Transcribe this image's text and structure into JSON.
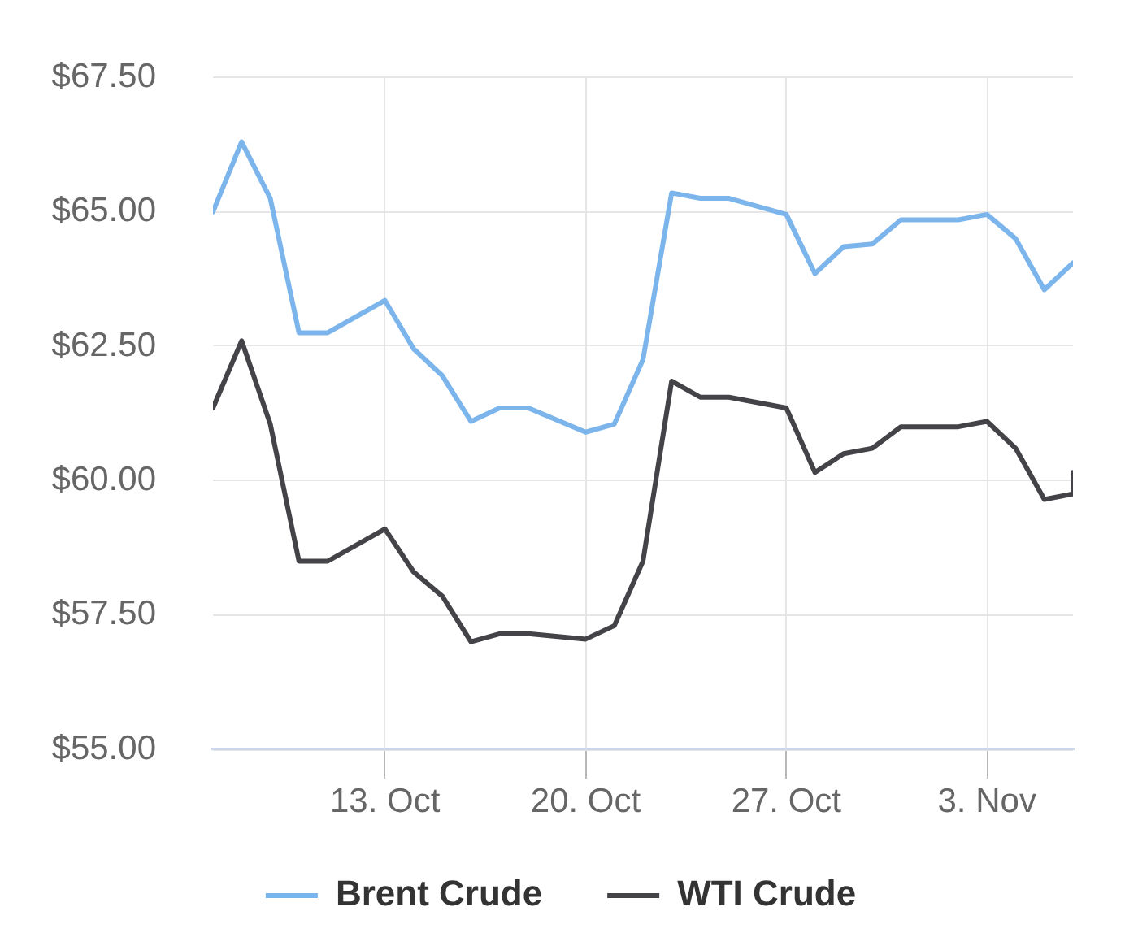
{
  "chart_data": {
    "type": "line",
    "x": [
      "--10-07",
      "--10-08",
      "--10-09",
      "--10-10",
      "--10-11",
      "--10-13",
      "--10-14",
      "--10-15",
      "--10-16",
      "--10-17",
      "--10-18",
      "--10-20",
      "--10-21",
      "--10-22",
      "--10-23",
      "--10-24",
      "--10-25",
      "--10-27",
      "--10-28",
      "--10-29",
      "--10-30",
      "--10-31",
      "--11-02",
      "--11-03",
      "--11-04",
      "--11-05",
      "--11-06"
    ],
    "series": [
      {
        "name": "Brent Crude",
        "color": "#7cb5ec",
        "values": [
          65.0,
          66.3,
          65.25,
          62.75,
          62.75,
          63.35,
          62.45,
          61.95,
          61.1,
          61.35,
          61.35,
          60.9,
          61.05,
          62.25,
          65.35,
          65.25,
          65.25,
          64.95,
          63.85,
          64.35,
          64.4,
          64.85,
          64.85,
          64.95,
          64.5,
          63.55,
          64.05
        ]
      },
      {
        "name": "WTI Crude",
        "color": "#434348",
        "x": [
          "--10-07",
          "--10-08",
          "--10-09",
          "--10-10",
          "--10-11",
          "--10-13",
          "--10-14",
          "--10-15",
          "--10-16",
          "--10-17",
          "--10-18",
          "--10-20",
          "--10-21",
          "--10-22",
          "--10-23",
          "--10-24",
          "--10-25",
          "--10-27",
          "--10-28",
          "--10-29",
          "--10-30",
          "--10-31",
          "--11-02",
          "--11-03",
          "--11-04",
          "--11-05",
          "--11-06",
          "--11-06"
        ],
        "values": [
          61.35,
          62.6,
          61.05,
          58.5,
          58.5,
          59.1,
          58.3,
          57.85,
          57.0,
          57.15,
          57.15,
          57.05,
          57.3,
          58.5,
          61.85,
          61.55,
          61.55,
          61.35,
          60.15,
          60.5,
          60.6,
          61.0,
          61.0,
          61.1,
          60.6,
          59.65,
          59.75,
          60.15
        ]
      }
    ],
    "xlim": [
      "--10-07",
      "--11-06"
    ],
    "xticks": [
      {
        "value": "--10-13",
        "label": "13. Oct"
      },
      {
        "value": "--10-20",
        "label": "20. Oct"
      },
      {
        "value": "--10-27",
        "label": "27. Oct"
      },
      {
        "value": "--11-03",
        "label": "3. Nov"
      }
    ],
    "ylim": [
      55,
      67.5
    ],
    "yticks": [
      {
        "value": 55,
        "label": "$55.00"
      },
      {
        "value": 57.5,
        "label": "$57.50"
      },
      {
        "value": 60,
        "label": "$60.00"
      },
      {
        "value": 62.5,
        "label": "$62.50"
      },
      {
        "value": 65,
        "label": "$65.00"
      },
      {
        "value": 67.5,
        "label": "$67.50"
      }
    ],
    "grid": true,
    "legend": "bottom",
    "marker": "none"
  }
}
